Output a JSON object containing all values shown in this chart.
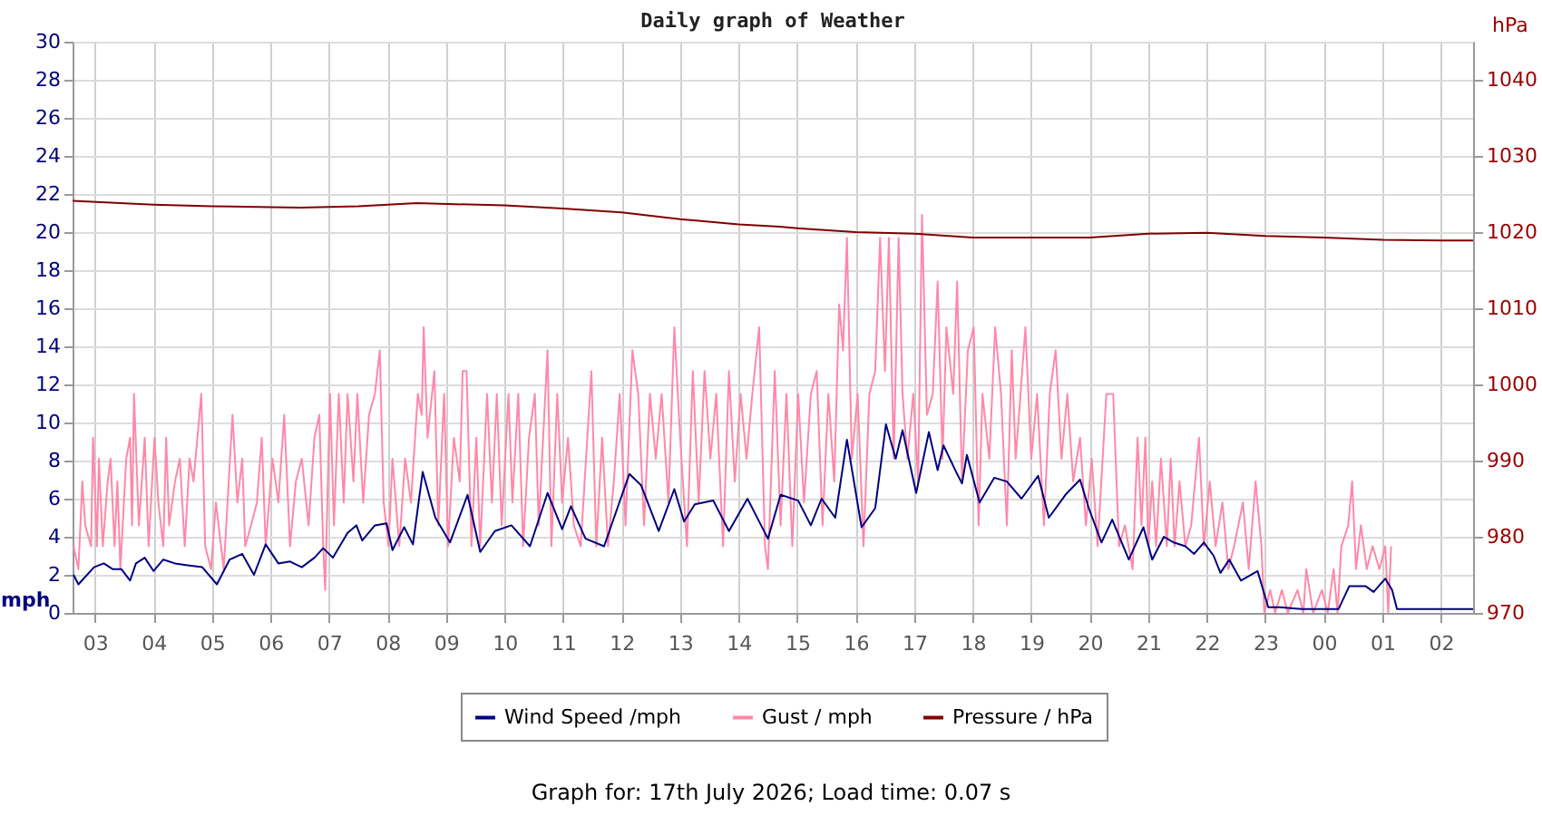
{
  "chart_data": {
    "type": "line",
    "title": "Daily graph of Weather",
    "ylabel": "mph",
    "y2label": "hPa",
    "annotations": [
      "Graph for: 17th July 2026; Load time: 0.07 s"
    ],
    "xlim": [
      "2026-07-16T02:37",
      "2026-07-17T02:33"
    ],
    "xticks": [
      {
        "value": "2026-07-16T03:00",
        "label": "03"
      },
      {
        "value": "2026-07-16T04:00",
        "label": "04"
      },
      {
        "value": "2026-07-16T05:00",
        "label": "05"
      },
      {
        "value": "2026-07-16T06:00",
        "label": "06"
      },
      {
        "value": "2026-07-16T07:00",
        "label": "07"
      },
      {
        "value": "2026-07-16T08:00",
        "label": "08"
      },
      {
        "value": "2026-07-16T09:00",
        "label": "09"
      },
      {
        "value": "2026-07-16T10:00",
        "label": "10"
      },
      {
        "value": "2026-07-16T11:00",
        "label": "11"
      },
      {
        "value": "2026-07-16T12:00",
        "label": "12"
      },
      {
        "value": "2026-07-16T13:00",
        "label": "13"
      },
      {
        "value": "2026-07-16T14:00",
        "label": "14"
      },
      {
        "value": "2026-07-16T15:00",
        "label": "15"
      },
      {
        "value": "2026-07-16T16:00",
        "label": "16"
      },
      {
        "value": "2026-07-16T17:00",
        "label": "17"
      },
      {
        "value": "2026-07-16T18:00",
        "label": "18"
      },
      {
        "value": "2026-07-16T19:00",
        "label": "19"
      },
      {
        "value": "2026-07-16T20:00",
        "label": "20"
      },
      {
        "value": "2026-07-16T21:00",
        "label": "21"
      },
      {
        "value": "2026-07-16T22:00",
        "label": "22"
      },
      {
        "value": "2026-07-16T23:00",
        "label": "23"
      },
      {
        "value": "2026-07-17T00:00",
        "label": "00"
      },
      {
        "value": "2026-07-17T01:00",
        "label": "01"
      },
      {
        "value": "2026-07-17T02:00",
        "label": "02"
      }
    ],
    "ylim": [
      0,
      30
    ],
    "yticks": [
      0,
      2,
      4,
      6,
      8,
      10,
      12,
      14,
      16,
      18,
      20,
      22,
      24,
      26,
      28,
      30
    ],
    "y2lim": [
      970,
      1045
    ],
    "y2ticks": [
      970,
      980,
      990,
      1000,
      1010,
      1020,
      1030,
      1040
    ],
    "grid": true,
    "legend": "bottom",
    "series": [
      {
        "name": "Wind Speed /mph",
        "color": "#000080",
        "x": [
          "2026-07-16T02:38",
          "2026-07-16T02:43",
          "2026-07-16T02:59",
          "2026-07-16T03:09",
          "2026-07-16T03:18",
          "2026-07-16T03:27",
          "2026-07-16T03:36",
          "2026-07-16T03:42",
          "2026-07-16T03:51",
          "2026-07-16T04:00",
          "2026-07-16T04:10",
          "2026-07-16T04:22",
          "2026-07-16T04:35",
          "2026-07-16T04:50",
          "2026-07-16T05:05",
          "2026-07-16T05:18",
          "2026-07-16T05:31",
          "2026-07-16T05:43",
          "2026-07-16T05:55",
          "2026-07-16T06:08",
          "2026-07-16T06:20",
          "2026-07-16T06:32",
          "2026-07-16T06:45",
          "2026-07-16T06:54",
          "2026-07-16T07:04",
          "2026-07-16T07:19",
          "2026-07-16T07:28",
          "2026-07-16T07:34",
          "2026-07-16T07:47",
          "2026-07-16T07:59",
          "2026-07-16T08:05",
          "2026-07-16T08:17",
          "2026-07-16T08:26",
          "2026-07-16T08:36",
          "2026-07-16T08:49",
          "2026-07-16T09:04",
          "2026-07-16T09:22",
          "2026-07-16T09:35",
          "2026-07-16T09:50",
          "2026-07-16T10:07",
          "2026-07-16T10:26",
          "2026-07-16T10:44",
          "2026-07-16T10:59",
          "2026-07-16T11:08",
          "2026-07-16T11:23",
          "2026-07-16T11:42",
          "2026-07-16T11:59",
          "2026-07-16T12:08",
          "2026-07-16T12:20",
          "2026-07-16T12:38",
          "2026-07-16T12:54",
          "2026-07-16T13:04",
          "2026-07-16T13:15",
          "2026-07-16T13:34",
          "2026-07-16T13:50",
          "2026-07-16T14:09",
          "2026-07-16T14:20",
          "2026-07-16T14:30",
          "2026-07-16T14:43",
          "2026-07-16T15:01",
          "2026-07-16T15:14",
          "2026-07-16T15:25",
          "2026-07-16T15:39",
          "2026-07-16T15:51",
          "2026-07-16T16:06",
          "2026-07-16T16:20",
          "2026-07-16T16:31",
          "2026-07-16T16:41",
          "2026-07-16T16:48",
          "2026-07-16T17:02",
          "2026-07-16T17:15",
          "2026-07-16T17:24",
          "2026-07-16T17:30",
          "2026-07-16T17:43",
          "2026-07-16T17:49",
          "2026-07-16T17:54",
          "2026-07-16T18:07",
          "2026-07-16T18:22",
          "2026-07-16T18:35",
          "2026-07-16T18:50",
          "2026-07-16T19:07",
          "2026-07-16T19:18",
          "2026-07-16T19:35",
          "2026-07-16T19:50",
          "2026-07-16T19:59",
          "2026-07-16T20:12",
          "2026-07-16T20:23",
          "2026-07-16T20:40",
          "2026-07-16T20:55",
          "2026-07-16T21:04",
          "2026-07-16T21:16",
          "2026-07-16T21:26",
          "2026-07-16T21:38",
          "2026-07-16T21:47",
          "2026-07-16T21:57",
          "2026-07-16T22:07",
          "2026-07-16T22:14",
          "2026-07-16T22:23",
          "2026-07-16T22:35",
          "2026-07-16T22:52",
          "2026-07-16T23:03",
          "2026-07-16T23:15",
          "2026-07-16T23:37",
          "2026-07-16T23:49",
          "2026-07-17T00:15",
          "2026-07-17T00:26",
          "2026-07-17T00:43",
          "2026-07-17T00:51",
          "2026-07-17T01:03",
          "2026-07-17T01:10",
          "2026-07-17T01:15",
          "2026-07-17T02:33"
        ],
        "values": [
          2.0,
          1.5,
          2.4,
          2.6,
          2.3,
          2.3,
          1.7,
          2.6,
          2.9,
          2.2,
          2.8,
          2.6,
          2.5,
          2.4,
          1.5,
          2.8,
          3.1,
          2.0,
          3.6,
          2.6,
          2.7,
          2.4,
          2.9,
          3.4,
          2.9,
          4.2,
          4.6,
          3.8,
          4.6,
          4.7,
          3.3,
          4.5,
          3.6,
          7.4,
          5.0,
          3.7,
          6.2,
          3.2,
          4.3,
          4.6,
          3.5,
          6.3,
          4.4,
          5.6,
          3.9,
          3.5,
          6.0,
          7.3,
          6.7,
          4.3,
          6.5,
          4.8,
          5.7,
          5.9,
          4.3,
          6.0,
          4.9,
          3.9,
          6.2,
          5.9,
          4.6,
          6.0,
          5.0,
          9.1,
          4.5,
          5.5,
          9.9,
          8.1,
          9.6,
          6.3,
          9.5,
          7.5,
          8.8,
          7.4,
          6.8,
          8.3,
          5.8,
          7.1,
          6.9,
          6.0,
          7.2,
          5.0,
          6.2,
          7.0,
          5.5,
          3.7,
          4.9,
          2.8,
          4.5,
          2.8,
          4.0,
          3.7,
          3.5,
          3.1,
          3.7,
          3.0,
          2.1,
          2.8,
          1.7,
          2.2,
          0.3,
          0.3,
          0.2,
          0.2,
          0.2,
          1.4,
          1.4,
          1.1,
          1.8,
          1.2,
          0.2,
          0.2
        ]
      },
      {
        "name": "Gust / mph",
        "color": "#ff88aa",
        "x": [
          "2026-07-16T02:38",
          "2026-07-16T02:43",
          "2026-07-16T02:47",
          "2026-07-16T02:50",
          "2026-07-16T02:56",
          "2026-07-16T02:58",
          "2026-07-16T03:02",
          "2026-07-16T03:04",
          "2026-07-16T03:08",
          "2026-07-16T03:13",
          "2026-07-16T03:16",
          "2026-07-16T03:20",
          "2026-07-16T03:23",
          "2026-07-16T03:26",
          "2026-07-16T03:32",
          "2026-07-16T03:36",
          "2026-07-16T03:38",
          "2026-07-16T03:40",
          "2026-07-16T03:45",
          "2026-07-16T03:51",
          "2026-07-16T03:55",
          "2026-07-16T04:01",
          "2026-07-16T04:05",
          "2026-07-16T04:10",
          "2026-07-16T04:13",
          "2026-07-16T04:16",
          "2026-07-16T04:22",
          "2026-07-16T04:27",
          "2026-07-16T04:32",
          "2026-07-16T04:37",
          "2026-07-16T04:41",
          "2026-07-16T04:49",
          "2026-07-16T04:53",
          "2026-07-16T04:59",
          "2026-07-16T05:04",
          "2026-07-16T05:12",
          "2026-07-16T05:21",
          "2026-07-16T05:26",
          "2026-07-16T05:31",
          "2026-07-16T05:34",
          "2026-07-16T05:40",
          "2026-07-16T05:46",
          "2026-07-16T05:51",
          "2026-07-16T05:55",
          "2026-07-16T06:02",
          "2026-07-16T06:08",
          "2026-07-16T06:14",
          "2026-07-16T06:20",
          "2026-07-16T06:26",
          "2026-07-16T06:32",
          "2026-07-16T06:39",
          "2026-07-16T06:45",
          "2026-07-16T06:50",
          "2026-07-16T06:54",
          "2026-07-16T06:56",
          "2026-07-16T07:01",
          "2026-07-16T07:05",
          "2026-07-16T07:10",
          "2026-07-16T07:15",
          "2026-07-16T07:19",
          "2026-07-16T07:25",
          "2026-07-16T07:29",
          "2026-07-16T07:35",
          "2026-07-16T07:41",
          "2026-07-16T07:47",
          "2026-07-16T07:52",
          "2026-07-16T07:56",
          "2026-07-16T08:01",
          "2026-07-16T08:05",
          "2026-07-16T08:12",
          "2026-07-16T08:18",
          "2026-07-16T08:24",
          "2026-07-16T08:31",
          "2026-07-16T08:35",
          "2026-07-16T08:37",
          "2026-07-16T08:41",
          "2026-07-16T08:48",
          "2026-07-16T08:52",
          "2026-07-16T08:58",
          "2026-07-16T09:02",
          "2026-07-16T09:08",
          "2026-07-16T09:14",
          "2026-07-16T09:17",
          "2026-07-16T09:21",
          "2026-07-16T09:26",
          "2026-07-16T09:31",
          "2026-07-16T09:35",
          "2026-07-16T09:42",
          "2026-07-16T09:47",
          "2026-07-16T09:52",
          "2026-07-16T09:57",
          "2026-07-16T10:04",
          "2026-07-16T10:08",
          "2026-07-16T10:14",
          "2026-07-16T10:19",
          "2026-07-16T10:25",
          "2026-07-16T10:31",
          "2026-07-16T10:35",
          "2026-07-16T10:44",
          "2026-07-16T10:48",
          "2026-07-16T10:54",
          "2026-07-16T10:59",
          "2026-07-16T11:05",
          "2026-07-16T11:11",
          "2026-07-16T11:18",
          "2026-07-16T11:29",
          "2026-07-16T11:34",
          "2026-07-16T11:40",
          "2026-07-16T11:46",
          "2026-07-16T11:52",
          "2026-07-16T11:58",
          "2026-07-16T12:04",
          "2026-07-16T12:11",
          "2026-07-16T12:17",
          "2026-07-16T12:23",
          "2026-07-16T12:29",
          "2026-07-16T12:35",
          "2026-07-16T12:41",
          "2026-07-16T12:48",
          "2026-07-16T12:54",
          "2026-07-16T13:00",
          "2026-07-16T13:07",
          "2026-07-16T13:13",
          "2026-07-16T13:19",
          "2026-07-16T13:25",
          "2026-07-16T13:31",
          "2026-07-16T13:37",
          "2026-07-16T13:44",
          "2026-07-16T13:50",
          "2026-07-16T13:56",
          "2026-07-16T14:02",
          "2026-07-16T14:08",
          "2026-07-16T14:14",
          "2026-07-16T14:21",
          "2026-07-16T14:27",
          "2026-07-16T14:30",
          "2026-07-16T14:37",
          "2026-07-16T14:43",
          "2026-07-16T14:49",
          "2026-07-16T14:55",
          "2026-07-16T15:01",
          "2026-07-16T15:07",
          "2026-07-16T15:14",
          "2026-07-16T15:20",
          "2026-07-16T15:26",
          "2026-07-16T15:32",
          "2026-07-16T15:38",
          "2026-07-16T15:43",
          "2026-07-16T15:47",
          "2026-07-16T15:51",
          "2026-07-16T15:56",
          "2026-07-16T16:02",
          "2026-07-16T16:08",
          "2026-07-16T16:14",
          "2026-07-16T16:20",
          "2026-07-16T16:25",
          "2026-07-16T16:30",
          "2026-07-16T16:34",
          "2026-07-16T16:39",
          "2026-07-16T16:44",
          "2026-07-16T16:48",
          "2026-07-16T16:53",
          "2026-07-16T16:59",
          "2026-07-16T17:04",
          "2026-07-16T17:08",
          "2026-07-16T17:13",
          "2026-07-16T17:19",
          "2026-07-16T17:24",
          "2026-07-16T17:29",
          "2026-07-16T17:33",
          "2026-07-16T17:40",
          "2026-07-16T17:44",
          "2026-07-16T17:49",
          "2026-07-16T17:55",
          "2026-07-16T18:01",
          "2026-07-16T18:06",
          "2026-07-16T18:10",
          "2026-07-16T18:17",
          "2026-07-16T18:23",
          "2026-07-16T18:29",
          "2026-07-16T18:35",
          "2026-07-16T18:40",
          "2026-07-16T18:44",
          "2026-07-16T18:49",
          "2026-07-16T18:54",
          "2026-07-16T19:00",
          "2026-07-16T19:06",
          "2026-07-16T19:13",
          "2026-07-16T19:19",
          "2026-07-16T19:25",
          "2026-07-16T19:31",
          "2026-07-16T19:37",
          "2026-07-16T19:43",
          "2026-07-16T19:50",
          "2026-07-16T19:56",
          "2026-07-16T20:02",
          "2026-07-16T20:08",
          "2026-07-16T20:17",
          "2026-07-16T20:24",
          "2026-07-16T20:30",
          "2026-07-16T20:36",
          "2026-07-16T20:44",
          "2026-07-16T20:49",
          "2026-07-16T20:53",
          "2026-07-16T20:57",
          "2026-07-16T21:00",
          "2026-07-16T21:04",
          "2026-07-16T21:08",
          "2026-07-16T21:13",
          "2026-07-16T21:19",
          "2026-07-16T21:23",
          "2026-07-16T21:27",
          "2026-07-16T21:32",
          "2026-07-16T21:38",
          "2026-07-16T21:44",
          "2026-07-16T21:52",
          "2026-07-16T21:57",
          "2026-07-16T22:03",
          "2026-07-16T22:09",
          "2026-07-16T22:16",
          "2026-07-16T22:22",
          "2026-07-16T22:28",
          "2026-07-16T22:37",
          "2026-07-16T22:43",
          "2026-07-16T22:50",
          "2026-07-16T22:56",
          "2026-07-16T22:59",
          "2026-07-16T23:05",
          "2026-07-16T23:10",
          "2026-07-16T23:17",
          "2026-07-16T23:23",
          "2026-07-16T23:33",
          "2026-07-16T23:39",
          "2026-07-16T23:42",
          "2026-07-16T23:49",
          "2026-07-16T23:58",
          "2026-07-17T00:04",
          "2026-07-17T00:10",
          "2026-07-17T00:14",
          "2026-07-17T00:18",
          "2026-07-17T00:25",
          "2026-07-17T00:29",
          "2026-07-17T00:33",
          "2026-07-17T00:38",
          "2026-07-17T00:44",
          "2026-07-17T00:50",
          "2026-07-17T00:57",
          "2026-07-17T01:03",
          "2026-07-17T01:06",
          "2026-07-17T01:09"
        ],
        "values": [
          3.5,
          2.3,
          6.9,
          4.6,
          3.5,
          9.2,
          3.5,
          8.1,
          3.5,
          6.9,
          8.1,
          3.5,
          6.9,
          2.3,
          8.1,
          9.2,
          4.6,
          11.5,
          4.6,
          9.2,
          3.5,
          9.2,
          5.8,
          3.5,
          9.2,
          4.6,
          6.9,
          8.1,
          3.5,
          8.1,
          6.9,
          11.5,
          3.5,
          2.3,
          5.8,
          2.3,
          10.4,
          5.8,
          8.1,
          3.5,
          4.6,
          5.8,
          9.2,
          3.5,
          8.1,
          5.8,
          10.4,
          3.5,
          6.9,
          8.1,
          4.6,
          9.2,
          10.4,
          3.5,
          1.2,
          11.5,
          4.6,
          11.5,
          5.8,
          11.5,
          6.9,
          11.5,
          5.8,
          10.4,
          11.5,
          13.8,
          5.8,
          3.5,
          8.1,
          3.5,
          8.1,
          5.8,
          11.5,
          10.4,
          15.0,
          9.2,
          12.7,
          4.6,
          11.5,
          3.5,
          9.2,
          6.9,
          12.7,
          12.7,
          3.5,
          9.2,
          3.5,
          11.5,
          5.8,
          11.5,
          4.6,
          11.5,
          5.8,
          11.5,
          3.5,
          9.2,
          11.5,
          4.6,
          13.8,
          3.5,
          11.5,
          5.8,
          9.2,
          4.6,
          3.5,
          12.7,
          3.5,
          9.2,
          3.5,
          6.9,
          11.5,
          4.6,
          13.8,
          11.5,
          4.6,
          11.5,
          8.1,
          11.5,
          5.8,
          15.0,
          9.2,
          3.5,
          12.7,
          5.8,
          12.7,
          8.1,
          11.5,
          3.5,
          12.7,
          6.9,
          11.5,
          8.1,
          11.5,
          15.0,
          3.5,
          2.3,
          12.7,
          4.6,
          11.5,
          3.5,
          11.5,
          5.8,
          11.5,
          12.7,
          4.6,
          11.5,
          6.9,
          16.2,
          13.8,
          19.7,
          8.1,
          11.5,
          3.5,
          11.5,
          12.7,
          19.7,
          12.7,
          19.7,
          8.1,
          19.7,
          11.5,
          8.1,
          11.5,
          6.9,
          20.9,
          10.4,
          11.5,
          17.4,
          8.1,
          15.0,
          11.5,
          17.4,
          6.9,
          13.8,
          15.0,
          4.6,
          11.5,
          8.1,
          15.0,
          11.5,
          4.6,
          13.8,
          8.1,
          11.5,
          15.0,
          8.1,
          11.5,
          4.6,
          11.5,
          13.8,
          8.1,
          11.5,
          6.9,
          9.2,
          4.6,
          8.1,
          3.5,
          11.5,
          11.5,
          3.5,
          4.6,
          2.3,
          9.2,
          4.6,
          9.2,
          3.5,
          6.9,
          3.5,
          8.1,
          3.5,
          8.1,
          3.5,
          6.9,
          3.5,
          4.6,
          9.2,
          3.5,
          6.9,
          3.5,
          5.8,
          2.3,
          3.5,
          5.8,
          2.3,
          6.9,
          3.5,
          0,
          1.2,
          0,
          1.2,
          0,
          1.2,
          0,
          2.3,
          0,
          1.2,
          0,
          2.3,
          0,
          3.5,
          4.6,
          6.9,
          2.3,
          4.6,
          2.3,
          3.5,
          2.3,
          3.5,
          0,
          3.5
        ]
      },
      {
        "name": "Pressure / hPa",
        "color": "#800000",
        "axis": "y2",
        "x": [
          "2026-07-16T02:37",
          "2026-07-16T04:00",
          "2026-07-16T05:00",
          "2026-07-16T06:30",
          "2026-07-16T07:30",
          "2026-07-16T08:30",
          "2026-07-16T10:00",
          "2026-07-16T11:00",
          "2026-07-16T12:00",
          "2026-07-16T13:00",
          "2026-07-16T14:00",
          "2026-07-16T14:42",
          "2026-07-16T15:00",
          "2026-07-16T16:00",
          "2026-07-16T17:00",
          "2026-07-16T18:00",
          "2026-07-16T20:00",
          "2026-07-16T21:00",
          "2026-07-16T22:00",
          "2026-07-16T23:00",
          "2026-07-17T00:00",
          "2026-07-17T01:00",
          "2026-07-17T02:00",
          "2026-07-17T02:33"
        ],
        "values": [
          1024.1,
          1023.6,
          1023.4,
          1023.2,
          1023.4,
          1023.8,
          1023.5,
          1023.1,
          1022.6,
          1021.7,
          1021.0,
          1020.7,
          1020.5,
          1020.0,
          1019.8,
          1019.3,
          1019.3,
          1019.8,
          1019.9,
          1019.5,
          1019.3,
          1019.0,
          1018.9,
          1018.9
        ]
      }
    ]
  }
}
